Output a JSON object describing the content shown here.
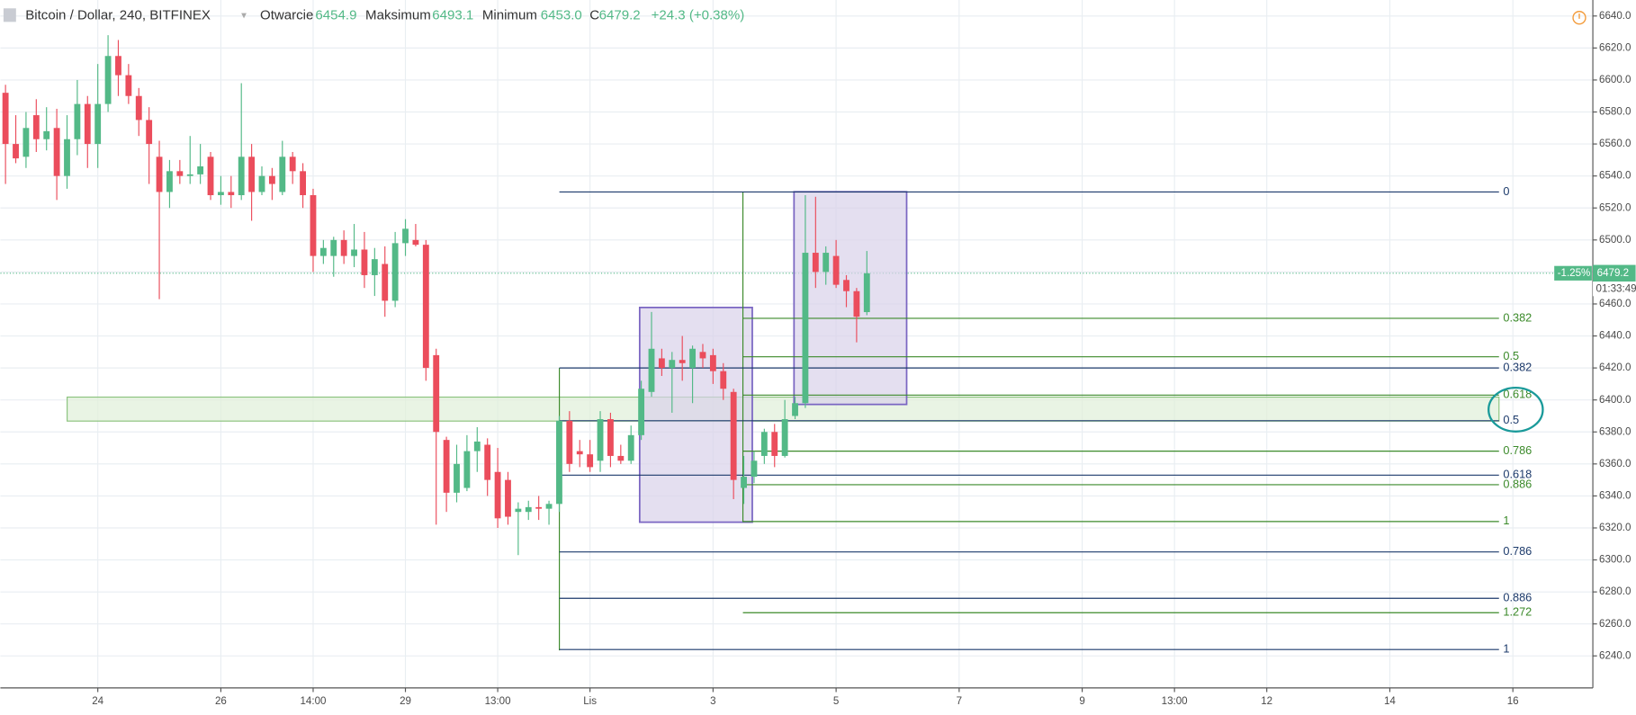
{
  "header": {
    "symbol": "Bitcoin / Dollar, 240, BITFINEX",
    "open_label": "Otwarcie",
    "open": "6454.9",
    "high_label": "Maksimum",
    "high": "6493.1",
    "low_label": "Minimum",
    "low": "6453.0",
    "close_label": "C",
    "close": "6479.2",
    "change": "+24.3 (+0.38%)"
  },
  "chart_data": {
    "type": "candlestick",
    "up_color": "#53b987",
    "down_color": "#eb4d5c",
    "open": [
      6592,
      6560,
      6552,
      6578,
      6563,
      6570,
      6540,
      6563,
      6585,
      6560,
      6585,
      6615,
      6603,
      6590,
      6575,
      6552,
      6530,
      6543,
      6540,
      6541,
      6552,
      6528,
      6530,
      6528,
      6552,
      6530,
      6540,
      6530,
      6552,
      6543,
      6528,
      6490,
      6490,
      6500,
      6490,
      6494,
      6478,
      6485,
      6462,
      6498,
      6500,
      6497,
      6428,
      6375,
      6342,
      6345,
      6368,
      6372,
      6355,
      6350,
      6330,
      6330,
      6333,
      6332,
      6335,
      6387,
      6368,
      6366,
      6362,
      6388,
      6365,
      6362,
      6378,
      6405,
      6426,
      6420,
      6425,
      6420,
      6430,
      6428,
      6418,
      6405,
      6345,
      6352,
      6365,
      6380,
      6365,
      6390,
      6398,
      6492,
      6480,
      6490,
      6475,
      6468,
      6454.9
    ],
    "high": [
      6597,
      6578,
      6580,
      6588,
      6583,
      6582,
      6578,
      6600,
      6590,
      6610,
      6628,
      6625,
      6610,
      6595,
      6583,
      6562,
      6550,
      6550,
      6565,
      6560,
      6555,
      6540,
      6540,
      6598,
      6560,
      6546,
      6545,
      6562,
      6555,
      6548,
      6532,
      6500,
      6502,
      6506,
      6510,
      6505,
      6495,
      6496,
      6505,
      6513,
      6510,
      6500,
      6432,
      6377,
      6372,
      6378,
      6383,
      6376,
      6370,
      6355,
      6336,
      6337,
      6340,
      6337,
      6390,
      6393,
      6375,
      6375,
      6393,
      6392,
      6372,
      6384,
      6412,
      6455,
      6432,
      6430,
      6440,
      6434,
      6435,
      6432,
      6423,
      6407,
      6365,
      6368,
      6382,
      6385,
      6400,
      6402,
      6528,
      6527,
      6496,
      6500,
      6478,
      6470,
      6493.1
    ],
    "low": [
      6535,
      6548,
      6545,
      6555,
      6556,
      6525,
      6532,
      6553,
      6545,
      6545,
      6580,
      6590,
      6585,
      6565,
      6535,
      6463,
      6520,
      6535,
      6535,
      6535,
      6525,
      6522,
      6520,
      6525,
      6512,
      6528,
      6525,
      6528,
      6535,
      6520,
      6480,
      6485,
      6477,
      6485,
      6483,
      6470,
      6465,
      6452,
      6458,
      6490,
      6496,
      6412,
      6322,
      6330,
      6336,
      6343,
      6355,
      6340,
      6320,
      6322,
      6303,
      6325,
      6325,
      6322,
      6330,
      6355,
      6358,
      6355,
      6355,
      6358,
      6360,
      6360,
      6375,
      6402,
      6415,
      6392,
      6412,
      6398,
      6420,
      6410,
      6400,
      6338,
      6335,
      6348,
      6360,
      6358,
      6364,
      6388,
      6395,
      6470,
      6472,
      6470,
      6458,
      6436,
      6453
    ],
    "close": [
      6560,
      6551,
      6570,
      6563,
      6568,
      6540,
      6563,
      6585,
      6560,
      6585,
      6615,
      6603,
      6590,
      6575,
      6560,
      6530,
      6543,
      6540,
      6541,
      6546,
      6528,
      6530,
      6528,
      6552,
      6530,
      6540,
      6535,
      6552,
      6543,
      6528,
      6490,
      6495,
      6500,
      6490,
      6494,
      6478,
      6488,
      6462,
      6498,
      6507,
      6497,
      6420,
      6380,
      6342,
      6360,
      6368,
      6374,
      6350,
      6326,
      6327,
      6332,
      6333,
      6332,
      6335,
      6387,
      6360,
      6366,
      6358,
      6388,
      6365,
      6362,
      6378,
      6407,
      6432,
      6420,
      6425,
      6423,
      6432,
      6426,
      6418,
      6407,
      6350,
      6352,
      6362,
      6380,
      6365,
      6388,
      6398,
      6492,
      6480,
      6492,
      6472,
      6468,
      6452,
      6479.2
    ],
    "ylim": [
      6220,
      6650
    ],
    "yticks": [
      {
        "value": 6240,
        "label": "6240.0"
      },
      {
        "value": 6260,
        "label": "6260.0"
      },
      {
        "value": 6280,
        "label": "6280.0"
      },
      {
        "value": 6300,
        "label": "6300.0"
      },
      {
        "value": 6320,
        "label": "6320.0"
      },
      {
        "value": 6340,
        "label": "6340.0"
      },
      {
        "value": 6360,
        "label": "6360.0"
      },
      {
        "value": 6380,
        "label": "6380.0"
      },
      {
        "value": 6400,
        "label": "6400.0"
      },
      {
        "value": 6420,
        "label": "6420.0"
      },
      {
        "value": 6440,
        "label": "6440.0"
      },
      {
        "value": 6460,
        "label": "6460.0"
      },
      {
        "value": 6480,
        "label": "6480.0"
      },
      {
        "value": 6500,
        "label": "6500.0"
      },
      {
        "value": 6520,
        "label": "6520.0"
      },
      {
        "value": 6540,
        "label": "6540.0"
      },
      {
        "value": 6560,
        "label": "6560.0"
      },
      {
        "value": 6580,
        "label": "6580.0"
      },
      {
        "value": 6600,
        "label": "6600.0"
      },
      {
        "value": 6620,
        "label": "6620.0"
      },
      {
        "value": 6640,
        "label": "6640.0"
      }
    ],
    "xlim": [
      -0.5,
      154.8
    ],
    "xticks": [
      {
        "value": 9,
        "label": "24"
      },
      {
        "value": 21,
        "label": "26"
      },
      {
        "value": 30,
        "label": "14:00"
      },
      {
        "value": 39,
        "label": "29"
      },
      {
        "value": 48,
        "label": "13:00"
      },
      {
        "value": 57,
        "label": "Lis"
      },
      {
        "value": 69,
        "label": "3"
      },
      {
        "value": 81,
        "label": "5"
      },
      {
        "value": 93,
        "label": "7"
      },
      {
        "value": 105,
        "label": "9"
      },
      {
        "value": 114,
        "label": "13:00"
      },
      {
        "value": 123,
        "label": "12"
      },
      {
        "value": 135,
        "label": "14"
      },
      {
        "value": 147,
        "label": "16"
      }
    ],
    "grid": true,
    "last_price": 6479.2,
    "last_change": "-1.25%",
    "countdown": "01:33:49",
    "fib": [
      {
        "color": "#1c3a6b",
        "levels": [
          {
            "ratio": 0,
            "price": 6530
          },
          {
            "ratio": 0.382,
            "price": 6420
          },
          {
            "ratio": 0.5,
            "price": 6387
          },
          {
            "ratio": 0.618,
            "price": 6353
          },
          {
            "ratio": 0.786,
            "price": 6305
          },
          {
            "ratio": 0.886,
            "price": 6276
          },
          {
            "ratio": 1,
            "price": 6244
          }
        ]
      },
      {
        "color": "#3b8a2a",
        "levels": [
          {
            "ratio": 0.382,
            "price": 6451
          },
          {
            "ratio": 0.5,
            "price": 6427
          },
          {
            "ratio": 0.618,
            "price": 6403
          },
          {
            "ratio": 0.786,
            "price": 6368
          },
          {
            "ratio": 0.886,
            "price": 6347
          },
          {
            "ratio": 1,
            "price": 6324
          },
          {
            "ratio": 1.272,
            "price": 6267
          }
        ]
      }
    ]
  }
}
